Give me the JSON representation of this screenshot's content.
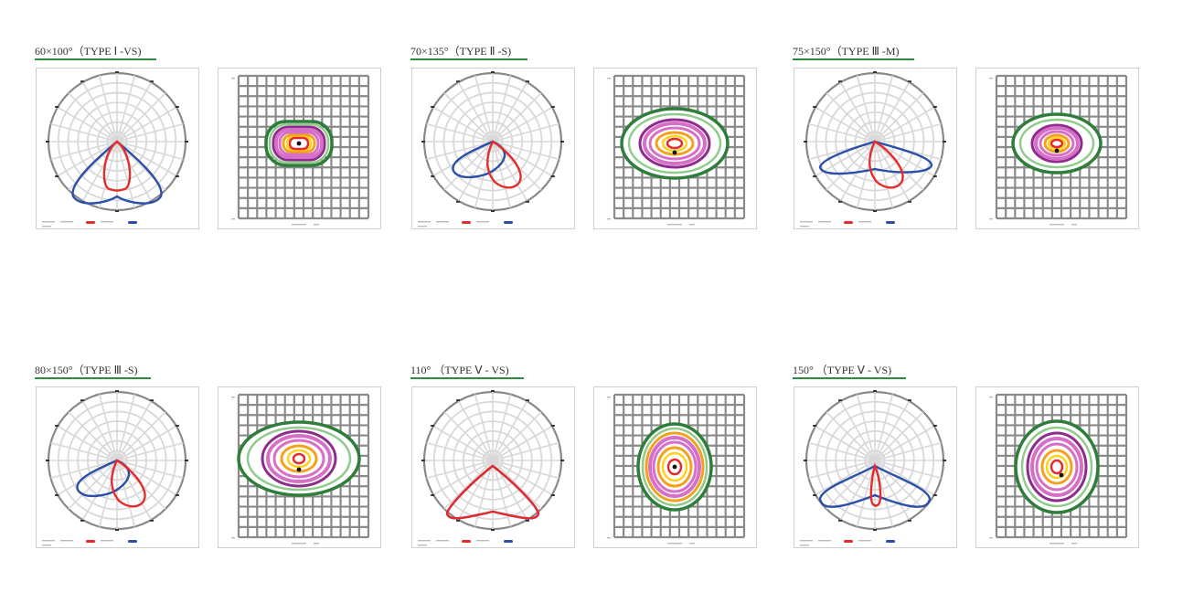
{
  "groups": [
    {
      "title": "60×100°（TYPE Ⅰ -VS)",
      "polar": {
        "blue": "wide-bowl",
        "red": "narrow-loop"
      },
      "iso": "rounded-rect-small"
    },
    {
      "title": "70×135°（TYPE Ⅱ -S)",
      "polar": {
        "blue": "skewed-left",
        "red": "skewed-right"
      },
      "iso": "oval-large"
    },
    {
      "title": "75×150°（TYPE Ⅲ -M)",
      "polar": {
        "blue": "flat-wide",
        "red": "skewed-right"
      },
      "iso": "oval-medium"
    },
    {
      "title": "80×150°（TYPE Ⅲ -S)",
      "polar": {
        "blue": "skewed-left",
        "red": "skewed-right"
      },
      "iso": "heart-large"
    },
    {
      "title": "110° （TYPE  Ⅴ - VS)",
      "polar": {
        "blue": "v-shape",
        "red": "v-shape"
      },
      "iso": "circle-large"
    },
    {
      "title": "150° （TYPE  Ⅴ - VS)",
      "polar": {
        "blue": "batwing",
        "red": "narrow-spike"
      },
      "iso": "circle-medium"
    }
  ],
  "colors": {
    "curve_red": "#e52b2b",
    "curve_blue": "#2b4fa8",
    "grid": "#d8d8d8",
    "iso_grid": "#8a8a8a",
    "iso_green_dark": "#2e7d3a",
    "iso_green_light": "#8fcb8a",
    "iso_purple": "#8e2c8c",
    "iso_pink": "#d66fc8",
    "iso_orange": "#f4a21d",
    "iso_yellow": "#ffd11a",
    "title_underline": "#2e8b3e"
  }
}
